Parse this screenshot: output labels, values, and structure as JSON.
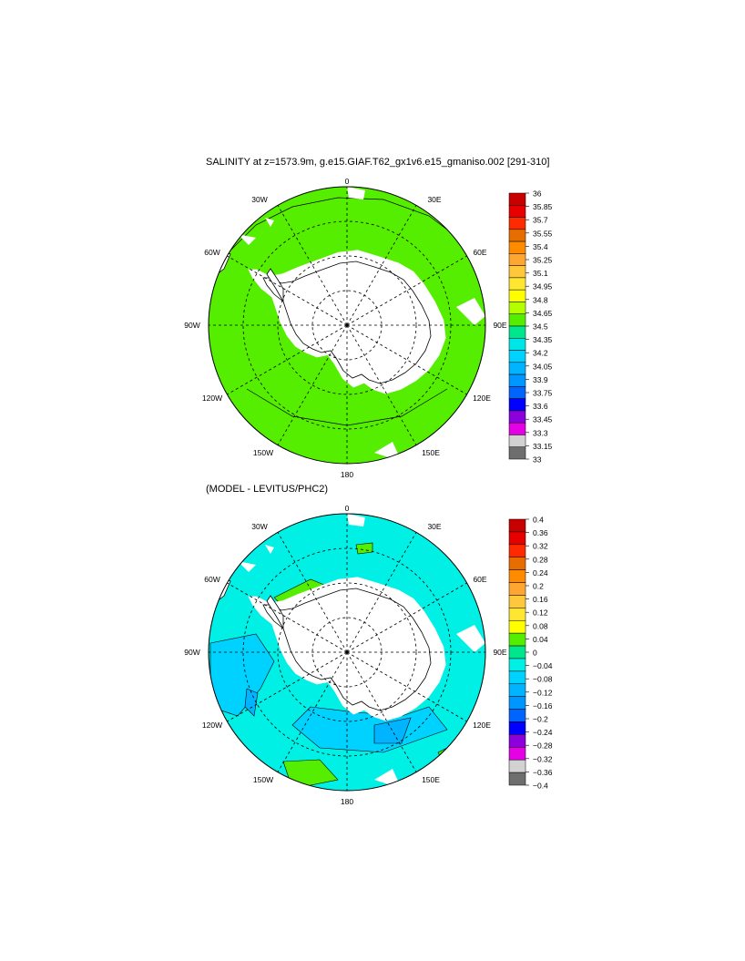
{
  "panels": [
    {
      "id": "salinity",
      "title": "SALINITY at z=1573.9m, g.e15.GIAF.T62_gx1v6.e15_gmaniso.002 [291-310]",
      "field_color": "#55ee00",
      "colorbar": {
        "labels": [
          "36",
          "35.85",
          "35.7",
          "35.55",
          "35.4",
          "35.25",
          "35.1",
          "34.95",
          "34.8",
          "34.65",
          "34.5",
          "34.35",
          "34.2",
          "34.05",
          "33.9",
          "33.75",
          "33.6",
          "33.45",
          "33.3",
          "33.15",
          "33"
        ],
        "colors": [
          "#c80000",
          "#e60000",
          "#ff2a00",
          "#e66e00",
          "#ff8c00",
          "#ffa532",
          "#ffc83c",
          "#ffe632",
          "#ffff00",
          "#b4ff00",
          "#55ee00",
          "#00e68c",
          "#00e6e6",
          "#00d2ff",
          "#00b4ff",
          "#0096ff",
          "#0064ff",
          "#0000ff",
          "#8c00dc",
          "#e600e6",
          "#d2d2d2",
          "#6e6e6e"
        ]
      },
      "longitude_labels": [
        "0",
        "30E",
        "60E",
        "90E",
        "120E",
        "150E",
        "180",
        "150W",
        "120W",
        "90W",
        "60W",
        "30W"
      ]
    },
    {
      "id": "difference",
      "title": "(MODEL - LEVITUS/PHC2)",
      "field_color": "#00f0e6",
      "colorbar": {
        "labels": [
          "0.4",
          "0.36",
          "0.32",
          "0.28",
          "0.24",
          "0.2",
          "0.16",
          "0.12",
          "0.08",
          "0.04",
          "0",
          "−0.04",
          "−0.08",
          "−0.12",
          "−0.16",
          "−0.2",
          "−0.24",
          "−0.28",
          "−0.32",
          "−0.36",
          "−0.4"
        ],
        "colors": [
          "#c80000",
          "#e60000",
          "#ff2a00",
          "#e66e00",
          "#ff8c00",
          "#ffa532",
          "#ffc83c",
          "#ffe632",
          "#ffff00",
          "#55ee00",
          "#00e68c",
          "#00f0e6",
          "#00d2ff",
          "#00b4ff",
          "#0096ff",
          "#0064ff",
          "#0000ff",
          "#8c00dc",
          "#e600e6",
          "#d2d2d2",
          "#6e6e6e"
        ]
      },
      "longitude_labels": [
        "0",
        "30E",
        "60E",
        "90E",
        "120E",
        "150E",
        "180",
        "150W",
        "120W",
        "90W",
        "60W",
        "30W"
      ]
    }
  ]
}
